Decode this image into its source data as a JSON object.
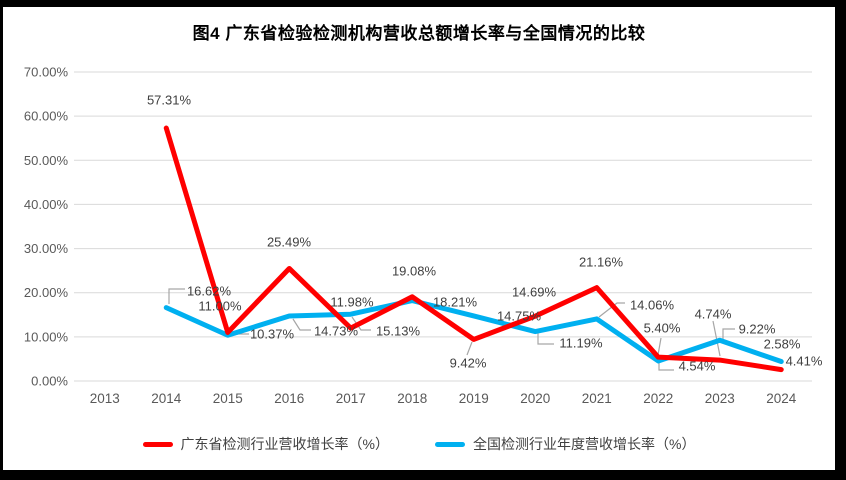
{
  "chart_data": {
    "type": "line",
    "title": "图4  广东省检验检测机构营收总额增长率与全国情况的比较",
    "x": [
      "2013",
      "2014",
      "2015",
      "2016",
      "2017",
      "2018",
      "2019",
      "2020",
      "2021",
      "2022",
      "2023",
      "2024"
    ],
    "xlabel": "",
    "ylabel": "",
    "ylim": [
      0,
      70
    ],
    "y_ticks": [
      "0.00%",
      "10.00%",
      "20.00%",
      "30.00%",
      "40.00%",
      "50.00%",
      "60.00%",
      "70.00%"
    ],
    "grid": true,
    "legend_position": "bottom",
    "label_format": "0.00%",
    "series": [
      {
        "name": "广东省检测行业营收增长率（%）",
        "color": "#FF0000",
        "first_x": "2014",
        "values": [
          57.31,
          11.0,
          25.49,
          11.98,
          19.08,
          9.42,
          14.69,
          21.16,
          5.4,
          4.74,
          2.58
        ]
      },
      {
        "name": "全国检测行业年度营收增长率（%）",
        "color": "#00B0F0",
        "first_x": "2014",
        "values": [
          16.62,
          10.37,
          14.73,
          15.13,
          18.21,
          14.75,
          11.19,
          14.06,
          4.54,
          9.22,
          4.41
        ]
      }
    ]
  }
}
